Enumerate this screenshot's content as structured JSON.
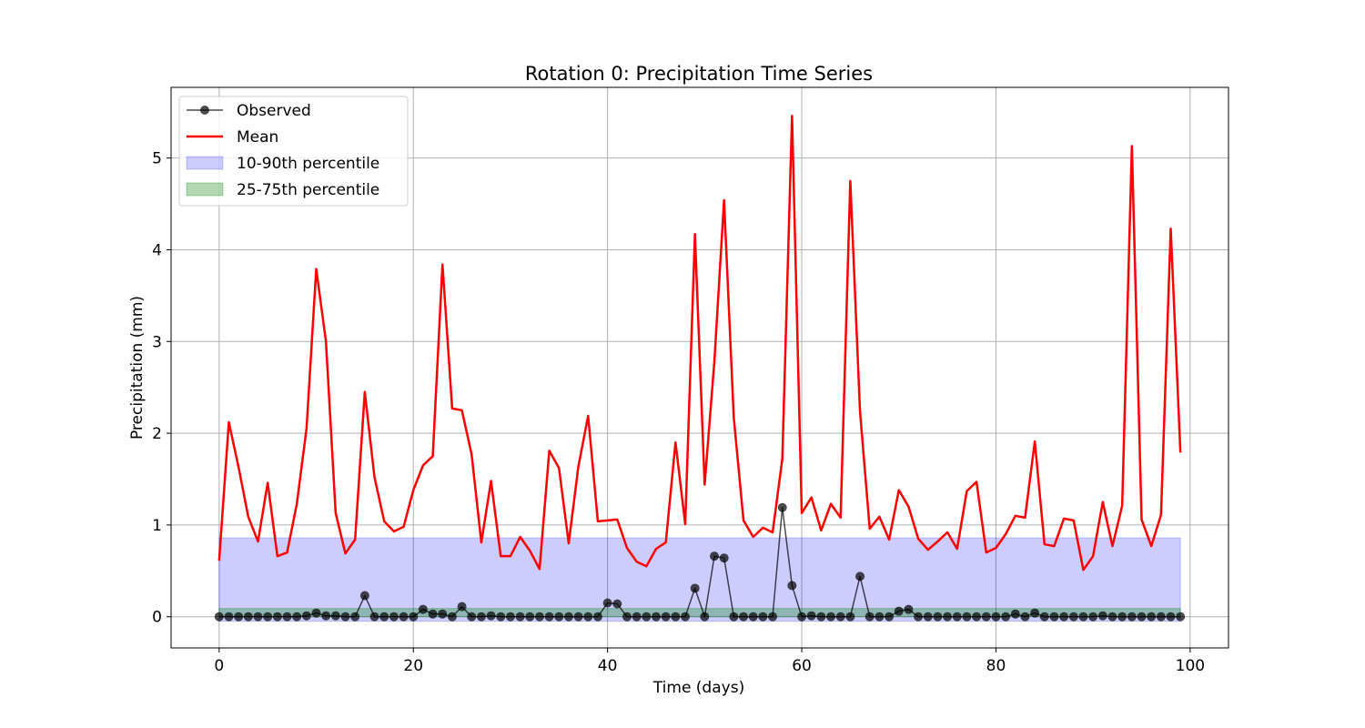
{
  "chart_data": {
    "type": "line",
    "title": "Rotation 0: Precipitation Time Series",
    "xlabel": "Time (days)",
    "ylabel": "Precipitation (mm)",
    "xlim": [
      -4.95,
      103.95
    ],
    "ylim": [
      -0.34,
      5.77
    ],
    "xticks": [
      0,
      20,
      40,
      60,
      80,
      100
    ],
    "yticks": [
      0,
      1,
      2,
      3,
      4,
      5
    ],
    "grid": true,
    "legend_position": "top-left",
    "bands": [
      {
        "name": "10-90th percentile",
        "x_start": 0,
        "x_end": 99,
        "lower": -0.05,
        "upper": 0.86,
        "color": "#0000ff",
        "opacity": 0.2
      },
      {
        "name": "25-75th percentile",
        "x_start": 0,
        "x_end": 99,
        "lower": 0.0,
        "upper": 0.09,
        "color": "#008000",
        "opacity": 0.3
      }
    ],
    "series": [
      {
        "name": "Observed",
        "color": "#000000",
        "opacity": 0.7,
        "marker": "circle",
        "x_start": 0,
        "values": [
          0,
          0,
          0,
          0,
          0,
          0,
          0,
          0,
          0,
          0.01,
          0.04,
          0.01,
          0.01,
          0,
          0,
          0.23,
          0,
          0,
          0,
          0,
          0,
          0.08,
          0.03,
          0.03,
          0,
          0.11,
          0,
          0,
          0.01,
          0,
          0,
          0,
          0,
          0,
          0,
          0,
          0,
          0,
          0,
          0,
          0.15,
          0.14,
          0,
          0,
          0,
          0,
          0,
          0,
          0,
          0.31,
          0,
          0.66,
          0.64,
          0,
          0,
          0,
          0,
          0,
          1.19,
          0.34,
          0,
          0.01,
          0,
          0,
          0,
          0,
          0.44,
          0,
          0,
          0,
          0.06,
          0.08,
          0,
          0,
          0,
          0,
          0,
          0,
          0,
          0,
          0,
          0,
          0.03,
          0,
          0.04,
          0,
          0,
          0,
          0,
          0,
          0,
          0.01,
          0,
          0,
          0,
          0,
          0,
          0,
          0,
          0
        ]
      },
      {
        "name": "Mean",
        "color": "#ff0000",
        "x_start": 0,
        "values": [
          0.61,
          2.12,
          1.63,
          1.09,
          0.82,
          1.46,
          0.66,
          0.7,
          1.23,
          2.05,
          3.79,
          3.0,
          1.13,
          0.69,
          0.84,
          2.45,
          1.52,
          1.04,
          0.93,
          0.98,
          1.38,
          1.65,
          1.75,
          3.84,
          2.27,
          2.25,
          1.77,
          0.81,
          1.48,
          0.66,
          0.66,
          0.87,
          0.72,
          0.52,
          1.81,
          1.62,
          0.8,
          1.64,
          2.19,
          1.04,
          1.05,
          1.06,
          0.75,
          0.6,
          0.55,
          0.74,
          0.81,
          1.9,
          1.01,
          4.17,
          1.44,
          2.78,
          4.54,
          2.17,
          1.05,
          0.87,
          0.97,
          0.92,
          1.72,
          5.46,
          1.13,
          1.3,
          0.94,
          1.23,
          1.08,
          4.75,
          2.24,
          0.96,
          1.09,
          0.84,
          1.38,
          1.2,
          0.85,
          0.73,
          0.82,
          0.92,
          0.74,
          1.37,
          1.47,
          0.7,
          0.75,
          0.9,
          1.1,
          1.08,
          1.91,
          0.79,
          0.77,
          1.07,
          1.05,
          0.51,
          0.66,
          1.25,
          0.77,
          1.21,
          5.13,
          1.06,
          0.77,
          1.11,
          4.23,
          1.79
        ]
      }
    ]
  }
}
